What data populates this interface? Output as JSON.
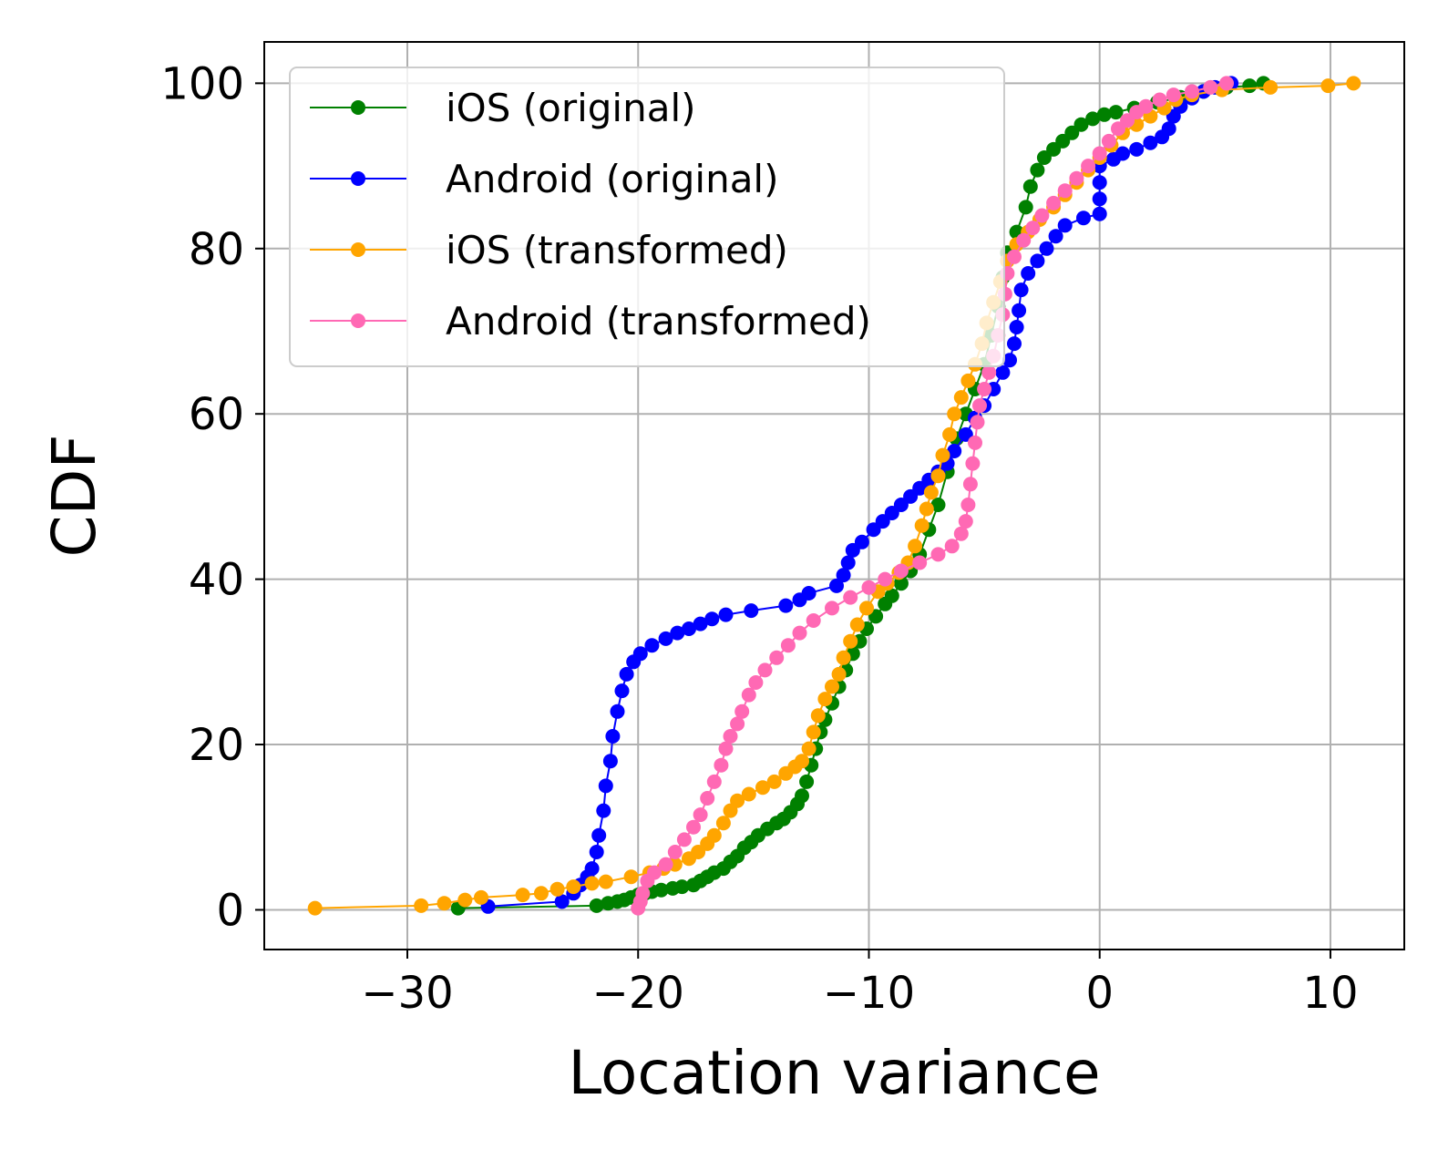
{
  "chart_data": {
    "type": "line",
    "title": "",
    "xlabel": "Location variance",
    "ylabel": "CDF",
    "xlim": [
      -36.2,
      13.2
    ],
    "ylim": [
      -4.8,
      105.0
    ],
    "xticks": [
      -30,
      -20,
      -10,
      0,
      10
    ],
    "yticks": [
      0,
      20,
      40,
      60,
      80,
      100
    ],
    "grid": true,
    "legend_position": "top-left",
    "series": [
      {
        "name": "iOS (original)",
        "color": "#008000",
        "points": [
          [
            -27.8,
            0.2
          ],
          [
            -21.8,
            0.5
          ],
          [
            -21.3,
            0.8
          ],
          [
            -20.9,
            1.0
          ],
          [
            -20.6,
            1.2
          ],
          [
            -20.3,
            1.5
          ],
          [
            -20.0,
            1.8
          ],
          [
            -19.7,
            2.0
          ],
          [
            -19.4,
            2.2
          ],
          [
            -19.0,
            2.4
          ],
          [
            -18.5,
            2.6
          ],
          [
            -18.1,
            2.8
          ],
          [
            -17.6,
            3.0
          ],
          [
            -17.3,
            3.5
          ],
          [
            -17.0,
            4.0
          ],
          [
            -16.7,
            4.5
          ],
          [
            -16.3,
            5.0
          ],
          [
            -16.0,
            5.8
          ],
          [
            -15.7,
            6.5
          ],
          [
            -15.4,
            7.5
          ],
          [
            -15.1,
            8.2
          ],
          [
            -14.8,
            9.0
          ],
          [
            -14.4,
            9.8
          ],
          [
            -14.0,
            10.5
          ],
          [
            -13.7,
            11.0
          ],
          [
            -13.4,
            11.8
          ],
          [
            -13.1,
            12.8
          ],
          [
            -12.9,
            13.8
          ],
          [
            -12.7,
            15.5
          ],
          [
            -12.5,
            17.5
          ],
          [
            -12.3,
            19.5
          ],
          [
            -12.1,
            21.5
          ],
          [
            -11.9,
            23.0
          ],
          [
            -11.6,
            25.0
          ],
          [
            -11.3,
            27.0
          ],
          [
            -11.0,
            29.0
          ],
          [
            -10.7,
            31.0
          ],
          [
            -10.4,
            32.5
          ],
          [
            -10.1,
            34.0
          ],
          [
            -9.7,
            35.5
          ],
          [
            -9.3,
            37.0
          ],
          [
            -9.0,
            38.0
          ],
          [
            -8.6,
            39.5
          ],
          [
            -8.2,
            41.0
          ],
          [
            -7.8,
            43.0
          ],
          [
            -7.4,
            46.0
          ],
          [
            -7.0,
            49.0
          ],
          [
            -6.6,
            53.0
          ],
          [
            -6.2,
            57.0
          ],
          [
            -5.8,
            60.0
          ],
          [
            -5.4,
            63.0
          ],
          [
            -5.0,
            66.0
          ],
          [
            -4.7,
            69.5
          ],
          [
            -4.4,
            73.0
          ],
          [
            -4.2,
            76.5
          ],
          [
            -4.0,
            79.5
          ],
          [
            -3.6,
            82.0
          ],
          [
            -3.2,
            85.0
          ],
          [
            -3.0,
            87.5
          ],
          [
            -2.7,
            89.5
          ],
          [
            -2.4,
            91.0
          ],
          [
            -2.0,
            92.0
          ],
          [
            -1.6,
            93.0
          ],
          [
            -1.2,
            94.0
          ],
          [
            -0.8,
            95.0
          ],
          [
            -0.3,
            95.7
          ],
          [
            0.2,
            96.2
          ],
          [
            0.7,
            96.5
          ],
          [
            1.5,
            97.0
          ],
          [
            2.5,
            97.7
          ],
          [
            3.5,
            98.3
          ],
          [
            4.5,
            99.0
          ],
          [
            5.5,
            99.5
          ],
          [
            6.5,
            99.7
          ],
          [
            7.1,
            100.0
          ]
        ]
      },
      {
        "name": "Android (original)",
        "color": "#0000ff",
        "points": [
          [
            -26.5,
            0.4
          ],
          [
            -23.3,
            1.0
          ],
          [
            -22.8,
            2.0
          ],
          [
            -22.5,
            3.0
          ],
          [
            -22.2,
            4.0
          ],
          [
            -22.0,
            5.0
          ],
          [
            -21.8,
            7.0
          ],
          [
            -21.7,
            9.0
          ],
          [
            -21.5,
            12.0
          ],
          [
            -21.4,
            15.0
          ],
          [
            -21.2,
            18.0
          ],
          [
            -21.1,
            21.0
          ],
          [
            -20.9,
            24.0
          ],
          [
            -20.7,
            26.5
          ],
          [
            -20.5,
            28.5
          ],
          [
            -20.2,
            30.0
          ],
          [
            -19.9,
            31.0
          ],
          [
            -19.4,
            32.0
          ],
          [
            -18.8,
            32.8
          ],
          [
            -18.3,
            33.5
          ],
          [
            -17.8,
            34.0
          ],
          [
            -17.3,
            34.6
          ],
          [
            -16.8,
            35.2
          ],
          [
            -16.2,
            35.7
          ],
          [
            -15.1,
            36.2
          ],
          [
            -13.6,
            36.8
          ],
          [
            -13.0,
            37.5
          ],
          [
            -12.6,
            38.3
          ],
          [
            -11.4,
            39.2
          ],
          [
            -11.1,
            40.5
          ],
          [
            -10.9,
            42.0
          ],
          [
            -10.7,
            43.5
          ],
          [
            -10.3,
            44.5
          ],
          [
            -9.8,
            46.0
          ],
          [
            -9.4,
            47.0
          ],
          [
            -9.0,
            48.0
          ],
          [
            -8.6,
            49.0
          ],
          [
            -8.2,
            50.0
          ],
          [
            -7.8,
            51.0
          ],
          [
            -7.4,
            52.0
          ],
          [
            -7.0,
            53.0
          ],
          [
            -6.6,
            54.0
          ],
          [
            -6.3,
            55.5
          ],
          [
            -5.8,
            57.5
          ],
          [
            -5.4,
            59.5
          ],
          [
            -5.0,
            61.0
          ],
          [
            -4.6,
            63.0
          ],
          [
            -4.2,
            65.0
          ],
          [
            -3.9,
            66.5
          ],
          [
            -3.7,
            68.5
          ],
          [
            -3.6,
            70.5
          ],
          [
            -3.5,
            72.5
          ],
          [
            -3.4,
            75.0
          ],
          [
            -3.1,
            77.0
          ],
          [
            -2.7,
            78.5
          ],
          [
            -2.3,
            80.0
          ],
          [
            -1.9,
            81.5
          ],
          [
            -1.5,
            82.8
          ],
          [
            -0.7,
            83.7
          ],
          [
            0.0,
            84.2
          ],
          [
            0.0,
            86.0
          ],
          [
            0.0,
            88.0
          ],
          [
            0.0,
            90.0
          ],
          [
            0.6,
            90.8
          ],
          [
            1.0,
            91.5
          ],
          [
            1.6,
            92.0
          ],
          [
            2.2,
            92.8
          ],
          [
            2.7,
            93.5
          ],
          [
            3.0,
            94.5
          ],
          [
            3.2,
            96.0
          ],
          [
            3.5,
            97.2
          ],
          [
            4.0,
            98.2
          ],
          [
            4.5,
            99.0
          ],
          [
            5.0,
            99.5
          ],
          [
            5.7,
            100.0
          ]
        ]
      },
      {
        "name": "iOS (transformed)",
        "color": "#ffa500",
        "points": [
          [
            -34.0,
            0.2
          ],
          [
            -29.4,
            0.5
          ],
          [
            -28.4,
            0.8
          ],
          [
            -27.5,
            1.2
          ],
          [
            -26.8,
            1.5
          ],
          [
            -25.0,
            1.8
          ],
          [
            -24.2,
            2.0
          ],
          [
            -23.5,
            2.5
          ],
          [
            -22.8,
            2.8
          ],
          [
            -22.0,
            3.2
          ],
          [
            -21.4,
            3.4
          ],
          [
            -20.3,
            4.0
          ],
          [
            -19.5,
            4.5
          ],
          [
            -18.9,
            5.0
          ],
          [
            -18.4,
            5.5
          ],
          [
            -17.8,
            6.2
          ],
          [
            -17.4,
            7.0
          ],
          [
            -17.0,
            8.0
          ],
          [
            -16.7,
            9.0
          ],
          [
            -16.3,
            10.5
          ],
          [
            -16.0,
            12.0
          ],
          [
            -15.7,
            13.2
          ],
          [
            -15.2,
            14.0
          ],
          [
            -14.6,
            14.8
          ],
          [
            -14.1,
            15.5
          ],
          [
            -13.6,
            16.5
          ],
          [
            -13.2,
            17.3
          ],
          [
            -12.9,
            18.0
          ],
          [
            -12.6,
            19.5
          ],
          [
            -12.4,
            21.5
          ],
          [
            -12.2,
            23.5
          ],
          [
            -11.9,
            25.5
          ],
          [
            -11.6,
            27.0
          ],
          [
            -11.3,
            28.5
          ],
          [
            -11.1,
            30.5
          ],
          [
            -10.8,
            32.5
          ],
          [
            -10.5,
            34.5
          ],
          [
            -10.1,
            36.5
          ],
          [
            -9.6,
            38.5
          ],
          [
            -9.2,
            39.5
          ],
          [
            -8.7,
            40.8
          ],
          [
            -8.3,
            42.0
          ],
          [
            -8.0,
            44.0
          ],
          [
            -7.7,
            46.5
          ],
          [
            -7.5,
            48.5
          ],
          [
            -7.3,
            50.5
          ],
          [
            -7.0,
            52.5
          ],
          [
            -6.8,
            55.0
          ],
          [
            -6.5,
            57.5
          ],
          [
            -6.3,
            60.0
          ],
          [
            -6.0,
            62.0
          ],
          [
            -5.7,
            64.0
          ],
          [
            -5.4,
            66.0
          ],
          [
            -5.1,
            68.5
          ],
          [
            -4.9,
            71.0
          ],
          [
            -4.6,
            73.5
          ],
          [
            -4.3,
            76.0
          ],
          [
            -4.0,
            78.5
          ],
          [
            -3.6,
            80.5
          ],
          [
            -3.1,
            82.0
          ],
          [
            -2.6,
            83.5
          ],
          [
            -2.0,
            85.0
          ],
          [
            -1.5,
            86.5
          ],
          [
            -1.0,
            88.0
          ],
          [
            -0.5,
            89.5
          ],
          [
            0.0,
            91.0
          ],
          [
            0.5,
            92.5
          ],
          [
            1.0,
            94.0
          ],
          [
            1.6,
            95.0
          ],
          [
            2.2,
            96.0
          ],
          [
            2.8,
            97.0
          ],
          [
            3.3,
            98.0
          ],
          [
            4.0,
            98.6
          ],
          [
            5.3,
            99.2
          ],
          [
            7.4,
            99.5
          ],
          [
            9.9,
            99.7
          ],
          [
            11.0,
            100.0
          ]
        ]
      },
      {
        "name": "Android (transformed)",
        "color": "#ff69b4",
        "points": [
          [
            -20.0,
            0.2
          ],
          [
            -19.9,
            1.0
          ],
          [
            -19.8,
            2.0
          ],
          [
            -19.6,
            3.5
          ],
          [
            -19.3,
            4.5
          ],
          [
            -18.8,
            5.5
          ],
          [
            -18.4,
            7.0
          ],
          [
            -18.0,
            8.5
          ],
          [
            -17.6,
            10.0
          ],
          [
            -17.3,
            11.5
          ],
          [
            -17.0,
            13.5
          ],
          [
            -16.7,
            15.5
          ],
          [
            -16.4,
            17.5
          ],
          [
            -16.2,
            19.5
          ],
          [
            -16.0,
            21.0
          ],
          [
            -15.7,
            22.5
          ],
          [
            -15.5,
            24.0
          ],
          [
            -15.2,
            26.0
          ],
          [
            -14.9,
            27.5
          ],
          [
            -14.5,
            29.0
          ],
          [
            -14.0,
            30.5
          ],
          [
            -13.5,
            32.0
          ],
          [
            -13.0,
            33.5
          ],
          [
            -12.4,
            35.0
          ],
          [
            -11.6,
            36.5
          ],
          [
            -10.8,
            37.8
          ],
          [
            -10.0,
            39.0
          ],
          [
            -9.3,
            40.0
          ],
          [
            -8.6,
            41.0
          ],
          [
            -7.8,
            42.0
          ],
          [
            -7.0,
            43.0
          ],
          [
            -6.4,
            44.0
          ],
          [
            -6.0,
            45.5
          ],
          [
            -5.8,
            47.0
          ],
          [
            -5.7,
            49.0
          ],
          [
            -5.6,
            51.5
          ],
          [
            -5.5,
            54.0
          ],
          [
            -5.4,
            56.5
          ],
          [
            -5.3,
            59.0
          ],
          [
            -5.2,
            61.0
          ],
          [
            -5.0,
            63.0
          ],
          [
            -4.8,
            65.0
          ],
          [
            -4.6,
            67.0
          ],
          [
            -4.4,
            69.5
          ],
          [
            -4.2,
            72.0
          ],
          [
            -4.1,
            74.5
          ],
          [
            -4.0,
            77.0
          ],
          [
            -3.7,
            79.0
          ],
          [
            -3.3,
            81.0
          ],
          [
            -2.9,
            82.5
          ],
          [
            -2.5,
            84.0
          ],
          [
            -2.0,
            85.5
          ],
          [
            -1.5,
            87.0
          ],
          [
            -1.0,
            88.5
          ],
          [
            -0.5,
            90.0
          ],
          [
            0.0,
            91.5
          ],
          [
            0.4,
            93.0
          ],
          [
            0.8,
            94.5
          ],
          [
            1.2,
            95.5
          ],
          [
            1.6,
            96.5
          ],
          [
            2.0,
            97.2
          ],
          [
            2.6,
            98.0
          ],
          [
            3.2,
            98.6
          ],
          [
            4.0,
            99.0
          ],
          [
            4.8,
            99.5
          ],
          [
            5.5,
            100.0
          ]
        ]
      }
    ]
  }
}
